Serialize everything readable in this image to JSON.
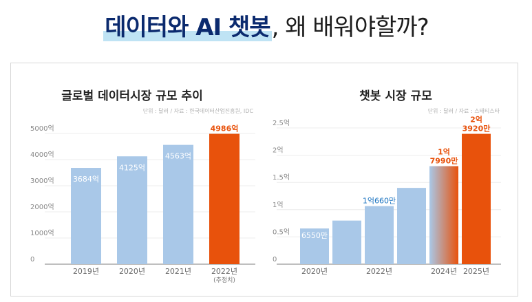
{
  "headline": {
    "highlight": "데이터와 AI 챗봇",
    "rest": ", 왜 배워야할까?"
  },
  "colors": {
    "bar": "#a9c8e8",
    "highlight": "#e8520c",
    "axis": "#999999"
  },
  "chart_data": [
    {
      "type": "bar",
      "title": "글로벌 데이터시장 규모 추이",
      "unit_note": "단위 : 달러 / 자료 : 한국데이터산업진흥원, IDC",
      "categories": [
        "2019년",
        "2020년",
        "2021년",
        "2022년"
      ],
      "category_notes": [
        "",
        "",
        "",
        "(추정치)"
      ],
      "values": [
        3684,
        4125,
        4563,
        4986
      ],
      "value_labels": [
        "3684억",
        "4125억",
        "4563억",
        "4986억"
      ],
      "highlight_index": 3,
      "yticks": [
        0,
        1000,
        2000,
        3000,
        4000,
        5000
      ],
      "ytick_labels": [
        "0",
        "1000억",
        "2000억",
        "3000억",
        "4000억",
        "5000억"
      ],
      "ylim": [
        0,
        5000
      ]
    },
    {
      "type": "bar",
      "title": "챗봇 시장 규모",
      "unit_note": "단위 : 달러 / 자료 : 스태티스타",
      "categories": [
        "2020년",
        "",
        "2022년",
        "",
        "2024년",
        "2025년"
      ],
      "values": [
        0.655,
        0.8,
        1.066,
        1.4,
        1.799,
        2.392
      ],
      "value_labels": [
        "6550만",
        "",
        "1억660만",
        "",
        "1억\n7990만",
        "2억\n3920만"
      ],
      "highlight_index": 5,
      "gradient_index": 4,
      "yticks": [
        0,
        0.5,
        1,
        1.5,
        2,
        2.5
      ],
      "ytick_labels": [
        "0",
        "0.5억",
        "1억",
        "1.5억",
        "2억",
        "2.5억"
      ],
      "ylim": [
        0,
        2.5
      ]
    }
  ]
}
